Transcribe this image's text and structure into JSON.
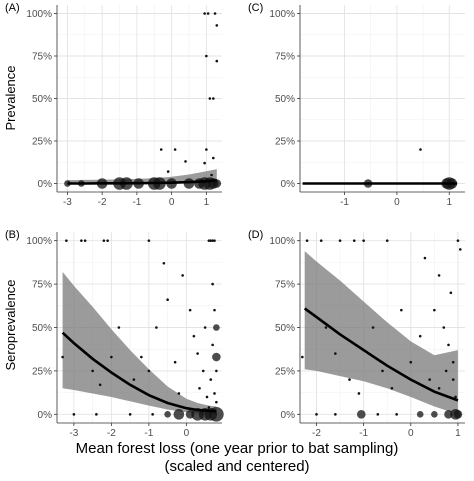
{
  "figure": {
    "xlabel_line1": "Mean forest loss (one year prior to bat sampling)",
    "xlabel_line2": "(scaled and centered)",
    "row_labels": [
      "Prevalence",
      "Seroprevalence"
    ]
  },
  "chart_data": [
    {
      "type": "scatter",
      "panel": "(A)",
      "ylabel": "Prevalence",
      "xlim": [
        -3.3,
        1.45
      ],
      "ylim": [
        -0.05,
        1.05
      ],
      "xticks": [
        -3,
        -2,
        -1,
        0,
        1
      ],
      "xtick_labels": [
        "-3",
        "-2",
        "-1",
        "0",
        "1"
      ],
      "yticks": [
        0,
        0.25,
        0.5,
        0.75,
        1
      ],
      "ytick_labels": [
        "0%",
        "25%",
        "50%",
        "75%",
        "100%"
      ],
      "grid": true,
      "fit": {
        "x": [
          -3.0,
          -2.5,
          -2.0,
          -1.5,
          -1.0,
          -0.5,
          0.0,
          0.5,
          1.0,
          1.3
        ],
        "y": [
          0.0,
          0.0,
          0.001,
          0.001,
          0.002,
          0.003,
          0.005,
          0.008,
          0.013,
          0.018
        ],
        "lo": [
          0.0,
          0.0,
          0.0,
          0.0,
          0.0,
          0.0,
          0.001,
          0.002,
          0.004,
          0.005
        ],
        "hi": [
          0.02,
          0.021,
          0.022,
          0.024,
          0.027,
          0.032,
          0.04,
          0.053,
          0.072,
          0.085
        ]
      },
      "points": [
        {
          "x": -3.0,
          "y": 0,
          "s": 2
        },
        {
          "x": -2.6,
          "y": 0,
          "s": 2
        },
        {
          "x": -2.0,
          "y": 0,
          "s": 4
        },
        {
          "x": -1.5,
          "y": 0,
          "s": 5
        },
        {
          "x": -1.3,
          "y": 0,
          "s": 5
        },
        {
          "x": -0.95,
          "y": 0,
          "s": 4
        },
        {
          "x": -0.5,
          "y": 0,
          "s": 5
        },
        {
          "x": -0.35,
          "y": 0,
          "s": 5
        },
        {
          "x": 0.0,
          "y": 0,
          "s": 4
        },
        {
          "x": 0.5,
          "y": 0,
          "s": 4
        },
        {
          "x": 0.8,
          "y": 0,
          "s": 4
        },
        {
          "x": 0.95,
          "y": 0,
          "s": 5
        },
        {
          "x": 1.1,
          "y": 0,
          "s": 5
        },
        {
          "x": 1.2,
          "y": 0,
          "s": 4
        },
        {
          "x": 1.3,
          "y": 0,
          "s": 3
        },
        {
          "x": -0.3,
          "y": 0.2,
          "s": 1
        },
        {
          "x": 0.1,
          "y": 0.2,
          "s": 1
        },
        {
          "x": 1.0,
          "y": 0.2,
          "s": 1
        },
        {
          "x": 0.95,
          "y": 0.12,
          "s": 1
        },
        {
          "x": 0.4,
          "y": 0.13,
          "s": 1
        },
        {
          "x": 1.2,
          "y": 0.15,
          "s": 1
        },
        {
          "x": -0.1,
          "y": 0.07,
          "s": 1
        },
        {
          "x": 1.0,
          "y": 0.75,
          "s": 1
        },
        {
          "x": 1.1,
          "y": 0.5,
          "s": 1
        },
        {
          "x": 1.2,
          "y": 0.5,
          "s": 1
        },
        {
          "x": 1.3,
          "y": 0.72,
          "s": 1
        },
        {
          "x": 0.95,
          "y": 1.0,
          "s": 1
        },
        {
          "x": 1.05,
          "y": 1.0,
          "s": 1
        },
        {
          "x": 1.25,
          "y": 1.0,
          "s": 1
        },
        {
          "x": 1.3,
          "y": 0.93,
          "s": 1
        },
        {
          "x": 1.15,
          "y": 0.05,
          "s": 1
        }
      ]
    },
    {
      "type": "scatter",
      "panel": "(C)",
      "ylabel": "",
      "xlim": [
        -1.85,
        1.3
      ],
      "ylim": [
        -0.05,
        1.05
      ],
      "xticks": [
        -1,
        0,
        1
      ],
      "xtick_labels": [
        "-1",
        "0",
        "1"
      ],
      "yticks": [
        0,
        0.25,
        0.5,
        0.75,
        1
      ],
      "ytick_labels": [
        "0%",
        "25%",
        "50%",
        "75%",
        "100%"
      ],
      "grid": true,
      "fit": {
        "x": [
          -1.8,
          -1.0,
          0.0,
          1.0,
          1.15
        ],
        "y": [
          0,
          0,
          0,
          0,
          0
        ],
        "lo": [
          0,
          0,
          0,
          0,
          0
        ],
        "hi": [
          0.004,
          0.004,
          0.004,
          0.004,
          0.004
        ]
      },
      "points": [
        {
          "x": -0.55,
          "y": 0,
          "s": 3
        },
        {
          "x": 0.95,
          "y": 0,
          "s": 4
        },
        {
          "x": 1.0,
          "y": 0,
          "s": 5
        },
        {
          "x": 1.05,
          "y": 0,
          "s": 4
        },
        {
          "x": 0.45,
          "y": 0.2,
          "s": 1
        }
      ]
    },
    {
      "type": "scatter",
      "panel": "(B)",
      "ylabel": "Seroprevalence",
      "xlim": [
        -3.45,
        0.95
      ],
      "ylim": [
        -0.05,
        1.05
      ],
      "xticks": [
        -3,
        -2,
        -1,
        0
      ],
      "xtick_labels": [
        "-3",
        "-2",
        "-1",
        "0"
      ],
      "yticks": [
        0,
        0.25,
        0.5,
        0.75,
        1
      ],
      "ytick_labels": [
        "0%",
        "25%",
        "50%",
        "75%",
        "100%"
      ],
      "grid": true,
      "fit": {
        "x": [
          -3.3,
          -3.0,
          -2.5,
          -2.0,
          -1.5,
          -1.0,
          -0.5,
          0.0,
          0.3,
          0.6,
          0.8
        ],
        "y": [
          0.47,
          0.41,
          0.32,
          0.24,
          0.17,
          0.11,
          0.065,
          0.035,
          0.025,
          0.02,
          0.018
        ],
        "lo": [
          0.15,
          0.14,
          0.12,
          0.1,
          0.075,
          0.05,
          0.028,
          0.012,
          0.006,
          0.003,
          0.002
        ],
        "hi": [
          0.82,
          0.74,
          0.62,
          0.49,
          0.37,
          0.26,
          0.16,
          0.09,
          0.065,
          0.05,
          0.045
        ]
      },
      "points": [
        {
          "x": -3.3,
          "y": 0.33,
          "s": 1
        },
        {
          "x": -3.2,
          "y": 1.0,
          "s": 1
        },
        {
          "x": -2.8,
          "y": 1.0,
          "s": 1
        },
        {
          "x": -2.7,
          "y": 1.0,
          "s": 1
        },
        {
          "x": -2.2,
          "y": 1.0,
          "s": 1
        },
        {
          "x": -2.1,
          "y": 1.0,
          "s": 1
        },
        {
          "x": -1.0,
          "y": 1.0,
          "s": 1
        },
        {
          "x": -1.8,
          "y": 0.5,
          "s": 1
        },
        {
          "x": -2.0,
          "y": 0.33,
          "s": 1
        },
        {
          "x": -2.5,
          "y": 0.25,
          "s": 1
        },
        {
          "x": -2.3,
          "y": 0.17,
          "s": 1
        },
        {
          "x": -1.4,
          "y": 0.2,
          "s": 1
        },
        {
          "x": -1.2,
          "y": 0.33,
          "s": 1
        },
        {
          "x": -1.0,
          "y": 0.25,
          "s": 1
        },
        {
          "x": -0.8,
          "y": 0.5,
          "s": 1
        },
        {
          "x": -0.6,
          "y": 0.87,
          "s": 1
        },
        {
          "x": -0.5,
          "y": 0.66,
          "s": 1
        },
        {
          "x": -0.3,
          "y": 0.3,
          "s": 1
        },
        {
          "x": -0.2,
          "y": 0.12,
          "s": 1
        },
        {
          "x": -0.1,
          "y": 0.8,
          "s": 1
        },
        {
          "x": 0.1,
          "y": 0.6,
          "s": 1
        },
        {
          "x": 0.2,
          "y": 0.45,
          "s": 1
        },
        {
          "x": 0.3,
          "y": 0.35,
          "s": 1
        },
        {
          "x": 0.35,
          "y": 0.15,
          "s": 1
        },
        {
          "x": 0.45,
          "y": 0.25,
          "s": 1
        },
        {
          "x": 0.5,
          "y": 0.5,
          "s": 1
        },
        {
          "x": 0.55,
          "y": 0.1,
          "s": 1
        },
        {
          "x": 0.6,
          "y": 1.0,
          "s": 1
        },
        {
          "x": 0.65,
          "y": 1.0,
          "s": 1
        },
        {
          "x": 0.7,
          "y": 1.0,
          "s": 1
        },
        {
          "x": 0.75,
          "y": 1.0,
          "s": 1
        },
        {
          "x": 0.7,
          "y": 0.75,
          "s": 1
        },
        {
          "x": 0.75,
          "y": 0.6,
          "s": 1
        },
        {
          "x": 0.8,
          "y": 0.5,
          "s": 2
        },
        {
          "x": 0.8,
          "y": 0.33,
          "s": 3
        },
        {
          "x": 0.7,
          "y": 0.4,
          "s": 1
        },
        {
          "x": 0.8,
          "y": 0.25,
          "s": 1
        },
        {
          "x": 0.65,
          "y": 0.2,
          "s": 1
        },
        {
          "x": 0.75,
          "y": 0.12,
          "s": 1
        },
        {
          "x": 0.8,
          "y": 0.07,
          "s": 1
        },
        {
          "x": 0.6,
          "y": 0.04,
          "s": 1
        },
        {
          "x": -3.0,
          "y": 0.0,
          "s": 1
        },
        {
          "x": -2.4,
          "y": 0.0,
          "s": 1
        },
        {
          "x": -1.5,
          "y": 0.0,
          "s": 1
        },
        {
          "x": -0.9,
          "y": 0.0,
          "s": 1
        },
        {
          "x": -0.5,
          "y": 0.0,
          "s": 2
        },
        {
          "x": -0.2,
          "y": 0.0,
          "s": 4
        },
        {
          "x": 0.1,
          "y": 0.0,
          "s": 3
        },
        {
          "x": 0.3,
          "y": 0.0,
          "s": 5
        },
        {
          "x": 0.5,
          "y": 0.0,
          "s": 5
        },
        {
          "x": 0.65,
          "y": 0.0,
          "s": 5
        },
        {
          "x": 0.8,
          "y": 0.0,
          "s": 6
        }
      ]
    },
    {
      "type": "scatter",
      "panel": "(D)",
      "ylabel": "",
      "xlim": [
        -2.35,
        1.15
      ],
      "ylim": [
        -0.05,
        1.05
      ],
      "xticks": [
        -2,
        -1,
        0,
        1
      ],
      "xtick_labels": [
        "-2",
        "-1",
        "0",
        "1"
      ],
      "yticks": [
        0,
        0.25,
        0.5,
        0.75,
        1
      ],
      "ytick_labels": [
        "0%",
        "25%",
        "50%",
        "75%",
        "100%"
      ],
      "grid": true,
      "fit": {
        "x": [
          -2.25,
          -2.0,
          -1.5,
          -1.0,
          -0.5,
          0.0,
          0.5,
          1.0
        ],
        "y": [
          0.61,
          0.56,
          0.46,
          0.37,
          0.28,
          0.2,
          0.13,
          0.08
        ],
        "lo": [
          0.26,
          0.25,
          0.22,
          0.19,
          0.15,
          0.1,
          0.045,
          0.0
        ],
        "hi": [
          0.94,
          0.88,
          0.77,
          0.65,
          0.53,
          0.42,
          0.34,
          0.37
        ]
      },
      "points": [
        {
          "x": -2.3,
          "y": 0.33,
          "s": 1
        },
        {
          "x": -2.2,
          "y": 1.0,
          "s": 1
        },
        {
          "x": -1.9,
          "y": 1.0,
          "s": 1
        },
        {
          "x": -1.5,
          "y": 1.0,
          "s": 1
        },
        {
          "x": -1.2,
          "y": 1.0,
          "s": 1
        },
        {
          "x": -1.0,
          "y": 1.0,
          "s": 1
        },
        {
          "x": -0.5,
          "y": 1.0,
          "s": 1
        },
        {
          "x": -1.8,
          "y": 0.5,
          "s": 1
        },
        {
          "x": -1.6,
          "y": 0.35,
          "s": 1
        },
        {
          "x": -1.3,
          "y": 0.2,
          "s": 1
        },
        {
          "x": -1.1,
          "y": 0.12,
          "s": 1
        },
        {
          "x": -0.8,
          "y": 0.5,
          "s": 1
        },
        {
          "x": -0.6,
          "y": 0.25,
          "s": 1
        },
        {
          "x": -0.4,
          "y": 0.15,
          "s": 1
        },
        {
          "x": -0.2,
          "y": 0.6,
          "s": 1
        },
        {
          "x": 0.0,
          "y": 0.3,
          "s": 1
        },
        {
          "x": 0.2,
          "y": 0.45,
          "s": 1
        },
        {
          "x": 0.3,
          "y": 0.9,
          "s": 1
        },
        {
          "x": 0.4,
          "y": 0.2,
          "s": 1
        },
        {
          "x": 0.5,
          "y": 0.6,
          "s": 1
        },
        {
          "x": 0.6,
          "y": 0.8,
          "s": 1
        },
        {
          "x": 0.7,
          "y": 0.5,
          "s": 1
        },
        {
          "x": 0.8,
          "y": 0.4,
          "s": 1
        },
        {
          "x": 0.85,
          "y": 0.7,
          "s": 1
        },
        {
          "x": 0.9,
          "y": 0.3,
          "s": 1
        },
        {
          "x": 0.95,
          "y": 0.1,
          "s": 1
        },
        {
          "x": 1.0,
          "y": 1.0,
          "s": 1
        },
        {
          "x": 1.05,
          "y": 0.95,
          "s": 1
        },
        {
          "x": 0.9,
          "y": 0.2,
          "s": 1
        },
        {
          "x": 0.75,
          "y": 0.25,
          "s": 1
        },
        {
          "x": 0.6,
          "y": 0.15,
          "s": 1
        },
        {
          "x": -2.0,
          "y": 0.0,
          "s": 1
        },
        {
          "x": -1.6,
          "y": 0.0,
          "s": 1
        },
        {
          "x": -1.05,
          "y": 0.0,
          "s": 3
        },
        {
          "x": -0.7,
          "y": 0.0,
          "s": 1
        },
        {
          "x": -0.3,
          "y": 0.0,
          "s": 1
        },
        {
          "x": 0.2,
          "y": 0.0,
          "s": 2
        },
        {
          "x": 0.5,
          "y": 0.0,
          "s": 2
        },
        {
          "x": 0.8,
          "y": 0.0,
          "s": 3
        },
        {
          "x": 0.95,
          "y": 0.0,
          "s": 4
        },
        {
          "x": 1.0,
          "y": 0.0,
          "s": 3
        }
      ]
    }
  ]
}
